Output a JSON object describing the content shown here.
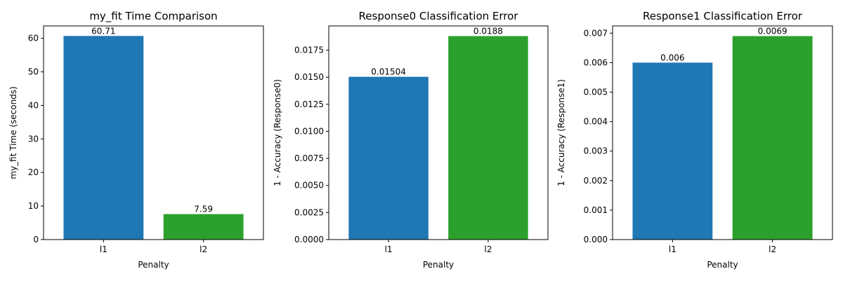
{
  "chart_data": [
    {
      "type": "bar",
      "title": "my_fit Time Comparison",
      "xlabel": "Penalty",
      "ylabel": "my_fit Time (seconds)",
      "categories": [
        "l1",
        "l2"
      ],
      "values": [
        60.71,
        7.59
      ],
      "value_labels": [
        "60.71",
        "7.59"
      ],
      "colors": [
        "#1f77b4",
        "#2ca02c"
      ],
      "ylim": [
        0,
        63.7
      ],
      "yticks": [
        0,
        10,
        20,
        30,
        40,
        50,
        60
      ],
      "ytick_labels": [
        "0",
        "10",
        "20",
        "30",
        "40",
        "50",
        "60"
      ],
      "grid": false
    },
    {
      "type": "bar",
      "title": "Response0 Classification Error",
      "xlabel": "Penalty",
      "ylabel": "1 - Accuracy (Response0)",
      "categories": [
        "l1",
        "l2"
      ],
      "values": [
        0.01504,
        0.0188
      ],
      "value_labels": [
        "0.01504",
        "0.0188"
      ],
      "colors": [
        "#1f77b4",
        "#2ca02c"
      ],
      "ylim": [
        0,
        0.01974
      ],
      "yticks": [
        0,
        0.0025,
        0.005,
        0.0075,
        0.01,
        0.0125,
        0.015,
        0.0175
      ],
      "ytick_labels": [
        "0.0000",
        "0.0025",
        "0.0050",
        "0.0075",
        "0.0100",
        "0.0125",
        "0.0150",
        "0.0175"
      ],
      "grid": false
    },
    {
      "type": "bar",
      "title": "Response1 Classification Error",
      "xlabel": "Penalty",
      "ylabel": "1 - Accuracy (Response1)",
      "categories": [
        "l1",
        "l2"
      ],
      "values": [
        0.006,
        0.0069
      ],
      "value_labels": [
        "0.006",
        "0.0069"
      ],
      "colors": [
        "#1f77b4",
        "#2ca02c"
      ],
      "ylim": [
        0,
        0.007245
      ],
      "yticks": [
        0,
        0.001,
        0.002,
        0.003,
        0.004,
        0.005,
        0.006,
        0.007
      ],
      "ytick_labels": [
        "0.000",
        "0.001",
        "0.002",
        "0.003",
        "0.004",
        "0.005",
        "0.006",
        "0.007"
      ],
      "grid": false
    }
  ]
}
